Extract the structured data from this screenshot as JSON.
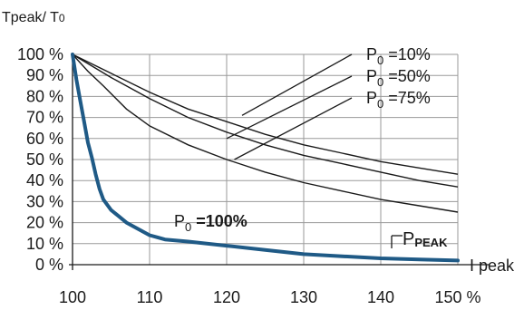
{
  "chart_data": {
    "type": "line",
    "ylabel_main": "Tpeak/ T",
    "ylabel_sub": "0",
    "xlabel": "I peak",
    "x_ticks": [
      100,
      110,
      120,
      130,
      140,
      150
    ],
    "x_tick_labels": [
      "100",
      "110",
      "120",
      "130",
      "140",
      "150 %"
    ],
    "y_ticks": [
      0,
      10,
      20,
      30,
      40,
      50,
      60,
      70,
      80,
      90,
      100
    ],
    "y_tick_labels": [
      "0 %",
      "10 %",
      "20 %",
      "30 %",
      "40 %",
      "50 %",
      "60 %",
      "70 %",
      "80 %",
      "90 %",
      "100 %"
    ],
    "xlim": [
      100,
      150
    ],
    "ylim": [
      0,
      100
    ],
    "grid": true,
    "series": [
      {
        "label_main": "P",
        "label_sub": "0",
        "label_tail": " =10%",
        "color": "#1a1a1a",
        "x": [
          100,
          105,
          110,
          115,
          120,
          125,
          130,
          135,
          140,
          145,
          150
        ],
        "y": [
          100,
          91,
          82,
          74,
          68,
          62,
          57,
          53,
          49,
          46,
          43
        ]
      },
      {
        "label_main": "P",
        "label_sub": "0",
        "label_tail": " =50%",
        "color": "#1a1a1a",
        "x": [
          100,
          105,
          110,
          115,
          120,
          125,
          130,
          135,
          140,
          145,
          150
        ],
        "y": [
          100,
          89,
          79,
          70,
          63,
          57,
          52,
          48,
          44,
          40,
          37
        ]
      },
      {
        "label_main": "P",
        "label_sub": "0",
        "label_tail": " =75%",
        "color": "#1a1a1a",
        "x": [
          100,
          102,
          104,
          107,
          110,
          115,
          120,
          125,
          130,
          135,
          140,
          145,
          150
        ],
        "y": [
          100,
          92,
          85,
          74,
          66,
          57,
          50,
          44,
          39,
          35,
          31,
          28,
          25
        ]
      },
      {
        "label_main": "P",
        "label_sub": "0",
        "label_tail": " =100%",
        "color": "#1f5a86",
        "x": [
          100,
          100.5,
          101,
          101.5,
          102,
          102.5,
          103,
          103.5,
          104,
          105,
          106,
          107,
          108,
          109,
          110,
          111,
          112,
          115,
          120,
          125,
          130,
          135,
          140,
          145,
          150
        ],
        "y": [
          100,
          88,
          78,
          68,
          58,
          51,
          43,
          36,
          31,
          26,
          23,
          20,
          18,
          16,
          14,
          13,
          12,
          11,
          9,
          7,
          5,
          4,
          3,
          2.5,
          2
        ]
      }
    ],
    "annotation": {
      "main": "P",
      "sub": "PEAK"
    }
  }
}
